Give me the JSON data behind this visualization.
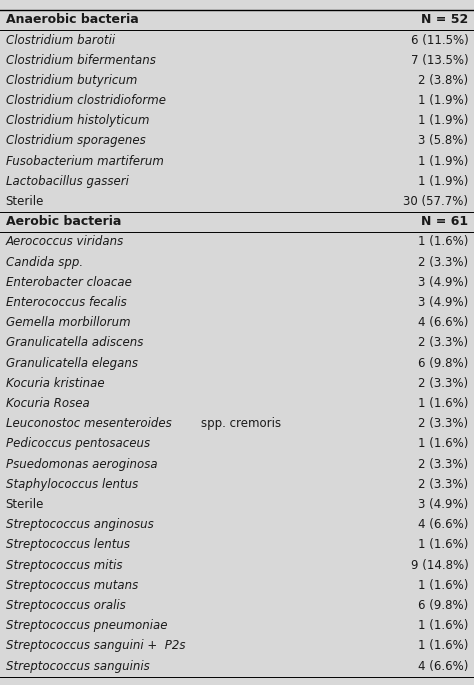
{
  "header1": "Anaerobic bacteria",
  "header1_right": "N = 52",
  "header2": "Aerobic bacteria",
  "header2_right": "N = 61",
  "rows": [
    {
      "name": "Anaerobic bacteria",
      "value": "N = 52",
      "type": "header"
    },
    {
      "name": "Clostridium barotii",
      "value": "6 (11.5%)",
      "type": "italic"
    },
    {
      "name": "Clostridium bifermentans",
      "value": "7 (13.5%)",
      "type": "italic"
    },
    {
      "name": "Clostridium butyricum",
      "value": "2 (3.8%)",
      "type": "italic"
    },
    {
      "name": "Clostridium clostridioforme",
      "value": "1 (1.9%)",
      "type": "italic"
    },
    {
      "name": "Clostridium histolyticum",
      "value": "1 (1.9%)",
      "type": "italic"
    },
    {
      "name": "Clostridium sporagenes",
      "value": "3 (5.8%)",
      "type": "italic"
    },
    {
      "name": "Fusobacterium martiferum",
      "value": "1 (1.9%)",
      "type": "italic"
    },
    {
      "name": "Lactobacillus gasseri",
      "value": "1 (1.9%)",
      "type": "italic"
    },
    {
      "name": "Sterile",
      "value": "30 (57.7%)",
      "type": "normal"
    },
    {
      "name": "Aerobic bacteria",
      "value": "N = 61",
      "type": "header"
    },
    {
      "name": "Aerococcus viridans",
      "value": "1 (1.6%)",
      "type": "italic"
    },
    {
      "name": "Candida spp.",
      "value": "2 (3.3%)",
      "type": "italic"
    },
    {
      "name": "Enterobacter cloacae",
      "value": "3 (4.9%)",
      "type": "italic"
    },
    {
      "name": "Enterococcus fecalis",
      "value": "3 (4.9%)",
      "type": "italic"
    },
    {
      "name": "Gemella morbillorum",
      "value": "4 (6.6%)",
      "type": "italic"
    },
    {
      "name": "Granulicatella adiscens",
      "value": "2 (3.3%)",
      "type": "italic"
    },
    {
      "name": "Granulicatella elegans",
      "value": "6 (9.8%)",
      "type": "italic"
    },
    {
      "name": "Kocuria kristinae",
      "value": "2 (3.3%)",
      "type": "italic"
    },
    {
      "name": "Kocuria Rosea",
      "value": "1 (1.6%)",
      "type": "italic"
    },
    {
      "name": "Leuconostoc mesenteroides spp. cremoris",
      "value": "2 (3.3%)",
      "type": "italic_mixed"
    },
    {
      "name": "Pedicoccus pentosaceus",
      "value": "1 (1.6%)",
      "type": "italic"
    },
    {
      "name": "Psuedomonas aeroginosa",
      "value": "2 (3.3%)",
      "type": "italic"
    },
    {
      "name": "Staphylococcus lentus",
      "value": "2 (3.3%)",
      "type": "italic"
    },
    {
      "name": "Sterile",
      "value": "3 (4.9%)",
      "type": "normal"
    },
    {
      "name": "Streptococcus anginosus",
      "value": "4 (6.6%)",
      "type": "italic"
    },
    {
      "name": "Streptococcus lentus",
      "value": "1 (1.6%)",
      "type": "italic"
    },
    {
      "name": "Streptococcus mitis",
      "value": "9 (14.8%)",
      "type": "italic"
    },
    {
      "name": "Streptococcus mutans",
      "value": "1 (1.6%)",
      "type": "italic"
    },
    {
      "name": "Streptococcus oralis",
      "value": "6 (9.8%)",
      "type": "italic"
    },
    {
      "name": "Streptococcus pneumoniae",
      "value": "1 (1.6%)",
      "type": "italic"
    },
    {
      "name": "Streptococcus sanguini +  P2s",
      "value": "1 (1.6%)",
      "type": "italic"
    },
    {
      "name": "Streptococcus sanguinis",
      "value": "4 (6.6%)",
      "type": "italic"
    }
  ],
  "bg_color": "#d8d8d8",
  "white_color": "#f0f0f0",
  "text_color": "#1a1a1a",
  "header_fontsize": 9.0,
  "row_fontsize": 8.5,
  "figwidth": 4.74,
  "figheight": 6.85,
  "dpi": 100
}
